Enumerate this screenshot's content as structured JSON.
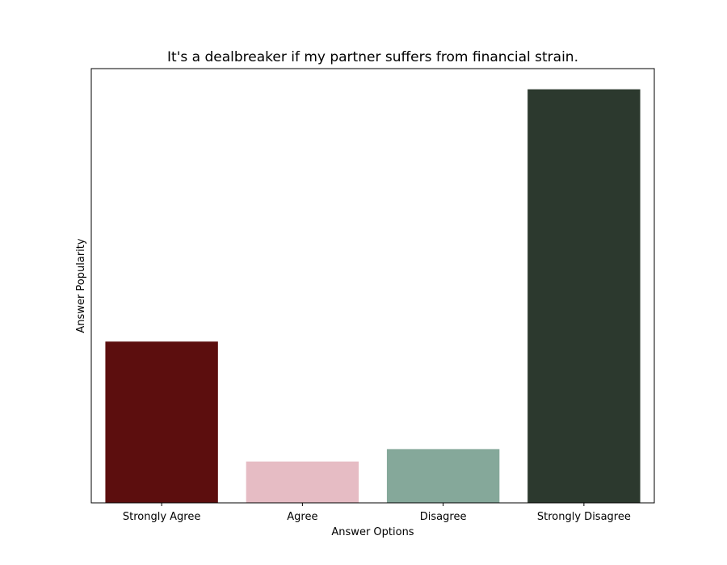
{
  "chart_data": {
    "type": "bar",
    "title": "It's a dealbreaker if my partner suffers from financial strain.",
    "xlabel": "Answer Options",
    "ylabel": "Answer Popularity",
    "categories": [
      "Strongly Agree",
      "Agree",
      "Disagree",
      "Strongly Disagree"
    ],
    "values": [
      39,
      10,
      13,
      100
    ],
    "colors": [
      "#5c0e0e",
      "#e6bcc4",
      "#85a89a",
      "#2c392e"
    ],
    "ylim": [
      0,
      105
    ],
    "y_ticks_shown": false,
    "grid": false,
    "legend": "none"
  }
}
